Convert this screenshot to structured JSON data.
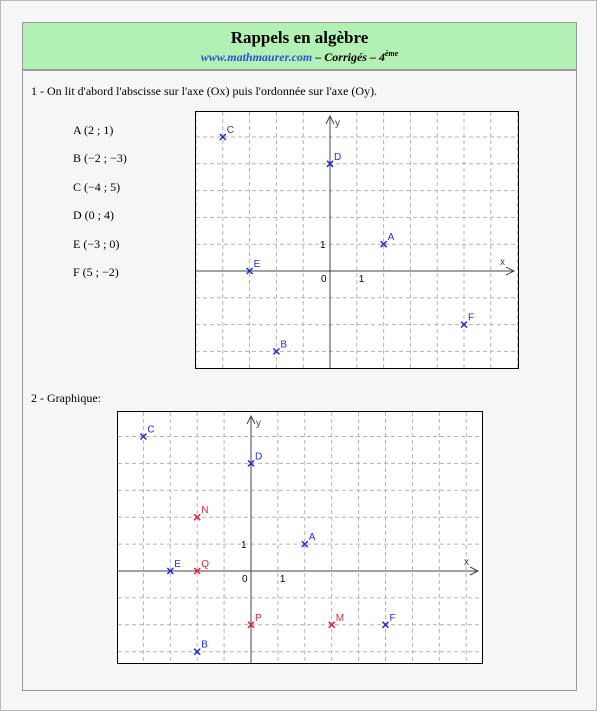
{
  "header": {
    "title": "Rappels en algèbre",
    "site": "www.mathmaurer.com",
    "subtitle": " – Corrigés – 4",
    "grade_sup": "ème"
  },
  "q1": {
    "label": "1 - On lit d'abord l'abscisse sur l'axe (Ox) puis l'ordonnée sur l'axe (Oy).",
    "points_text": [
      "A (2 ; 1)",
      "B (−2 ; −3)",
      "C (−4 ; 5)",
      "D (0 ; 4)",
      "E (−3 ; 0)",
      "F (5 ; −2)"
    ]
  },
  "q2": {
    "label": "2 - Graphique:"
  },
  "colors": {
    "blue": "#1f2ee0",
    "red": "#e0283a",
    "grid": "#b4b4b4",
    "header_bg": "#b3f0b3"
  },
  "chart_data": [
    {
      "type": "scatter",
      "xlabel": "x",
      "ylabel": "y",
      "xlim": [
        -5,
        6.5
      ],
      "ylim": [
        -3.5,
        5.8
      ],
      "grid": true,
      "tick_labels": {
        "origin": "0",
        "x_unit": "1",
        "y_unit": "1"
      },
      "points": [
        {
          "name": "A",
          "x": 2,
          "y": 1,
          "color": "blue"
        },
        {
          "name": "B",
          "x": -2,
          "y": -3,
          "color": "blue"
        },
        {
          "name": "C",
          "x": -4,
          "y": 5,
          "color": "blue"
        },
        {
          "name": "D",
          "x": 0,
          "y": 4,
          "color": "blue"
        },
        {
          "name": "E",
          "x": -3,
          "y": 0,
          "color": "blue"
        },
        {
          "name": "F",
          "x": 5,
          "y": -2,
          "color": "blue"
        }
      ]
    },
    {
      "type": "scatter",
      "xlabel": "x",
      "ylabel": "y",
      "xlim": [
        -5,
        8.5
      ],
      "ylim": [
        -3.5,
        6
      ],
      "grid": true,
      "tick_labels": {
        "origin": "0",
        "x_unit": "1",
        "y_unit": "1"
      },
      "points": [
        {
          "name": "A",
          "x": 2,
          "y": 1,
          "color": "blue"
        },
        {
          "name": "B",
          "x": -2,
          "y": -3,
          "color": "blue"
        },
        {
          "name": "C",
          "x": -4,
          "y": 5,
          "color": "blue"
        },
        {
          "name": "D",
          "x": 0,
          "y": 4,
          "color": "blue"
        },
        {
          "name": "E",
          "x": -3,
          "y": 0,
          "color": "blue"
        },
        {
          "name": "F",
          "x": 5,
          "y": -2,
          "color": "blue"
        },
        {
          "name": "N",
          "x": -2,
          "y": 2,
          "color": "red"
        },
        {
          "name": "Q",
          "x": -2,
          "y": 0,
          "color": "red"
        },
        {
          "name": "P",
          "x": 0,
          "y": -2,
          "color": "red"
        },
        {
          "name": "M",
          "x": 3,
          "y": -2,
          "color": "red"
        }
      ]
    }
  ]
}
